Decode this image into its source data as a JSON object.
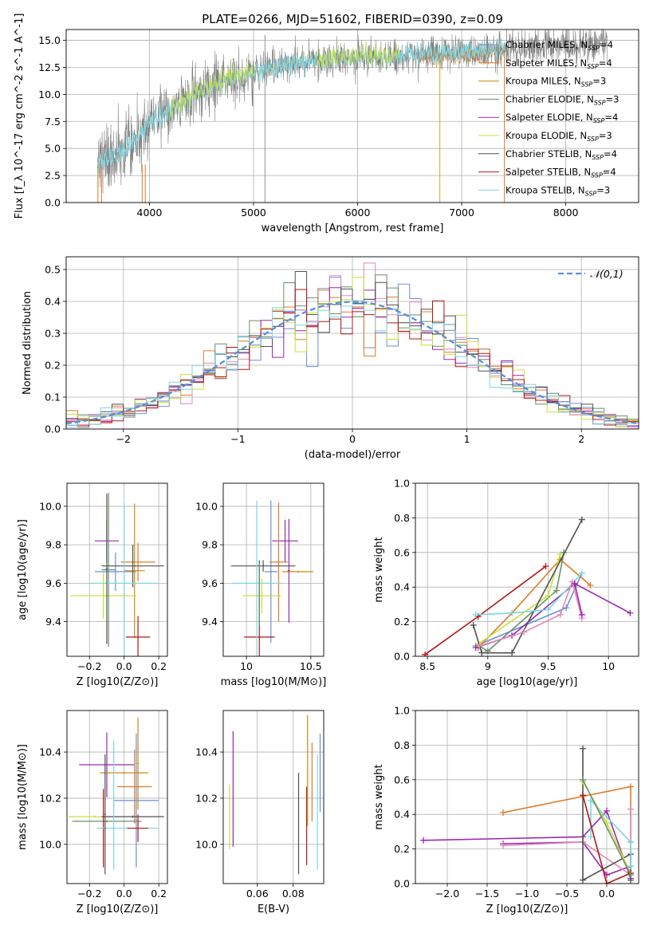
{
  "figure_title": "PLATE=0266, MJD=51602, FIBERID=0390, z=0.09",
  "models": [
    {
      "name": "Chabrier MILES, N_SSP=4",
      "color": "#6d8fd6",
      "n": 4
    },
    {
      "name": "Salpeter MILES, N_SSP=4",
      "color": "#e07a2a",
      "n": 4
    },
    {
      "name": "Kroupa MILES, N_SSP=3",
      "color": "#d08a10",
      "n": 3
    },
    {
      "name": "Chabrier ELODIE, N_SSP=3",
      "color": "#6a8e6a",
      "n": 3
    },
    {
      "name": "Salpeter ELODIE, N_SSP=4",
      "color": "#9a27b0",
      "n": 4
    },
    {
      "name": "Kroupa ELODIE, N_SSP=3",
      "color": "#c6e03a",
      "n": 3
    },
    {
      "name": "Chabrier STELIB, N_SSP=4",
      "color": "#505050",
      "n": 4
    },
    {
      "name": "Salpeter STELIB, N_SSP=4",
      "color": "#b01818",
      "n": 4
    },
    {
      "name": "Kroupa STELIB, N_SSP=3",
      "color": "#7fd6e0",
      "n": 3
    }
  ],
  "chart_data": [
    {
      "id": "spectrum",
      "type": "line",
      "xlabel": "wavelength [Angstrom, rest frame]",
      "ylabel": "Flux [f_λ 10^-17 erg cm^-2 s^-1 A^-1]",
      "xlim": [
        3200,
        8700
      ],
      "ylim": [
        0,
        16
      ],
      "xticks": [
        4000,
        5000,
        6000,
        7000,
        8000
      ],
      "yticks": [
        0.0,
        2.5,
        5.0,
        7.5,
        10.0,
        12.5,
        15.0
      ],
      "grid": true,
      "legend_position": "upper right",
      "data_color": "#808080",
      "model_color": "#7fd6e0",
      "continuum_x": [
        3500,
        3700,
        3900,
        4000,
        4200,
        4400,
        4600,
        4800,
        5000,
        5200,
        5400,
        5600,
        5800,
        6000,
        6200,
        6400,
        6600,
        6800,
        7000,
        7200,
        7400
      ],
      "continuum_y": [
        3.5,
        4.5,
        6.0,
        7.5,
        8.5,
        9.8,
        10.8,
        11.5,
        12.0,
        12.5,
        12.9,
        13.1,
        13.3,
        13.4,
        13.5,
        13.6,
        13.7,
        13.8,
        13.9,
        14.0,
        14.1
      ],
      "data_end_x": 8400,
      "model_end_x": 7420,
      "spikes_x": [
        5110,
        6790,
        7410
      ]
    },
    {
      "id": "residuals",
      "type": "histogram",
      "xlabel": "(data-model)/error",
      "ylabel": "Normed distribution",
      "xlim": [
        -2.5,
        2.5
      ],
      "ylim": [
        0,
        0.54
      ],
      "xticks": [
        -2,
        -1,
        0,
        1,
        2
      ],
      "xtick_labels": [
        "−2",
        "−1",
        "0",
        "1",
        "2"
      ],
      "yticks": [
        0.0,
        0.1,
        0.2,
        0.3,
        0.4,
        0.5
      ],
      "bin_width": 0.1,
      "legend_label": "N(0,1)",
      "legend_position": "upper right",
      "gaussian": {
        "mean": 0,
        "sigma": 1,
        "color": "#5b8fd6"
      },
      "grid": true
    },
    {
      "id": "age-vs-Z",
      "type": "errorbar",
      "xlabel": "Z [log10(Z/Z⊙)]",
      "ylabel": "age  [log10(age/yr)]",
      "xlim": [
        -0.33,
        0.25
      ],
      "ylim": [
        9.22,
        10.12
      ],
      "xticks": [
        -0.2,
        0.0,
        0.2
      ],
      "xtick_labels": [
        "−0.2",
        "0.0",
        "0.2"
      ],
      "yticks": [
        9.4,
        9.6,
        9.8,
        10.0
      ],
      "points": [
        {
          "x": -0.1,
          "y": 9.82,
          "xerr": 0.07,
          "yerr": 0.11,
          "model": 4
        },
        {
          "x": -0.05,
          "y": 9.66,
          "xerr": 0.12,
          "yerr": 0.1,
          "model": 0
        },
        {
          "x": 0.08,
          "y": 9.71,
          "xerr": 0.1,
          "yerr": 0.1,
          "model": 1
        },
        {
          "x": 0.06,
          "y": 9.665,
          "xerr": 0.06,
          "yerr": 0.35,
          "model": 2
        },
        {
          "x": -0.12,
          "y": 9.535,
          "xerr": 0.19,
          "yerr": 0.12,
          "model": 5
        },
        {
          "x": 0.05,
          "y": 9.69,
          "xerr": 0.18,
          "yerr": 0.11,
          "model": 6
        },
        {
          "x": -0.09,
          "y": 9.67,
          "xerr": 0.04,
          "yerr": 0.4,
          "model": 3
        },
        {
          "x": 0.08,
          "y": 9.32,
          "xerr": 0.07,
          "yerr": 0.11,
          "model": 7
        },
        {
          "x": 0.0,
          "y": 9.6,
          "xerr": 0.19,
          "yerr": 0.42,
          "model": 8
        },
        {
          "x": -0.1,
          "y": 9.675,
          "xerr": 0.005,
          "yerr": 0.39,
          "model": 6
        }
      ]
    },
    {
      "id": "age-vs-mass",
      "type": "errorbar",
      "xlabel": "mass [log10(M/M⊙)]",
      "ylabel": "",
      "xlim": [
        9.82,
        10.6
      ],
      "ylim": [
        9.22,
        10.12
      ],
      "xticks": [
        10.0,
        10.5
      ],
      "yticks": [
        9.4,
        9.6,
        9.8,
        10.0
      ],
      "points": [
        {
          "x": 10.3,
          "y": 9.82,
          "xerr": 0.1,
          "yerr": 0.11,
          "model": 4
        },
        {
          "x": 10.19,
          "y": 9.66,
          "xerr": 0.05,
          "yerr": 0.37,
          "model": 0
        },
        {
          "x": 10.25,
          "y": 9.71,
          "xerr": 0.07,
          "yerr": 0.31,
          "model": 1
        },
        {
          "x": 10.33,
          "y": 9.665,
          "xerr": 0.01,
          "yerr": 0.27,
          "model": 4
        },
        {
          "x": 10.4,
          "y": 9.66,
          "xerr": 0.12,
          "yerr": 0.005,
          "model": 2
        },
        {
          "x": 10.12,
          "y": 9.535,
          "xerr": 0.15,
          "yerr": 0.09,
          "model": 5
        },
        {
          "x": 10.13,
          "y": 9.69,
          "xerr": 0.25,
          "yerr": 0.03,
          "model": 6
        },
        {
          "x": 10.1,
          "y": 9.32,
          "xerr": 0.12,
          "yerr": 0.4,
          "model": 7
        },
        {
          "x": 10.08,
          "y": 9.6,
          "xerr": 0.19,
          "yerr": 0.43,
          "model": 8
        },
        {
          "x": 10.1,
          "y": 9.55,
          "xerr": 0.005,
          "yerr": 0.17,
          "model": 3
        }
      ]
    },
    {
      "id": "massweight-vs-age",
      "type": "line",
      "xlabel": "age  [log10(age/yr)]",
      "ylabel": "mass weight",
      "xlim": [
        8.4,
        10.25
      ],
      "ylim": [
        0,
        1
      ],
      "xticks": [
        8.5,
        9.0,
        9.5,
        10.0
      ],
      "yticks": [
        0.0,
        0.2,
        0.4,
        0.6,
        0.8,
        1.0
      ],
      "series": [
        {
          "model": 0,
          "x": [
            8.9,
            9.65,
            9.78
          ],
          "y": [
            0.06,
            0.28,
            0.48
          ]
        },
        {
          "model": 1,
          "x": [
            8.92,
            9.2,
            9.6,
            9.85
          ],
          "y": [
            0.05,
            0.25,
            0.56,
            0.41
          ]
        },
        {
          "model": 3,
          "x": [
            8.93,
            9.0,
            9.57,
            9.63
          ],
          "y": [
            0.06,
            0.03,
            0.38,
            0.6
          ]
        },
        {
          "model": 4,
          "x": [
            8.9,
            9.2,
            9.72,
            10.18
          ],
          "y": [
            0.05,
            0.12,
            0.42,
            0.25
          ]
        },
        {
          "model": 5,
          "x": [
            8.92,
            9.5,
            9.6
          ],
          "y": [
            0.07,
            0.35,
            0.59
          ]
        },
        {
          "model": 6,
          "x": [
            8.88,
            8.95,
            9.2,
            9.78
          ],
          "y": [
            0.18,
            0.02,
            0.02,
            0.79
          ]
        },
        {
          "model": 7,
          "x": [
            8.48,
            8.92,
            9.48
          ],
          "y": [
            0.01,
            0.23,
            0.52
          ]
        },
        {
          "model": 8,
          "x": [
            8.9,
            9.2,
            9.5,
            9.78
          ],
          "y": [
            0.24,
            0.25,
            0.27,
            0.48
          ]
        },
        {
          "model": 2,
          "x": [
            8.93,
            9.3,
            9.6,
            9.7,
            9.78
          ],
          "y": [
            0.06,
            0.14,
            0.24,
            0.43,
            0.22
          ],
          "color": "#e08ab8"
        },
        {
          "model": 4,
          "x": [
            9.72,
            9.78
          ],
          "y": [
            0.42,
            0.24
          ]
        }
      ]
    },
    {
      "id": "mass-vs-Z",
      "type": "errorbar",
      "xlabel": "Z [log10(Z/Z⊙)]",
      "ylabel": "mass [log10(M/M⊙)]",
      "xlim": [
        -0.33,
        0.25
      ],
      "ylim": [
        9.83,
        10.58
      ],
      "xticks": [
        -0.2,
        0.0,
        0.2
      ],
      "xtick_labels": [
        "−0.2",
        "0.0",
        "0.2"
      ],
      "yticks": [
        10.0,
        10.2,
        10.4
      ],
      "points": [
        {
          "x": -0.1,
          "y": 10.345,
          "xerr": 0.16,
          "yerr": 0.14,
          "model": 4
        },
        {
          "x": 0.0,
          "y": 10.31,
          "xerr": 0.14,
          "yerr": 0.005,
          "model": 2
        },
        {
          "x": 0.06,
          "y": 10.25,
          "xerr": 0.1,
          "yerr": 0.16,
          "model": 1
        },
        {
          "x": 0.07,
          "y": 10.19,
          "xerr": 0.13,
          "yerr": 0.29,
          "model": 0
        },
        {
          "x": -0.17,
          "y": 10.12,
          "xerr": 0.15,
          "yerr": 0.005,
          "model": 5
        },
        {
          "x": 0.05,
          "y": 10.12,
          "xerr": 0.18,
          "yerr": 0.005,
          "model": 6
        },
        {
          "x": -0.1,
          "y": 10.1,
          "xerr": 0.2,
          "yerr": 0.005,
          "model": 3
        },
        {
          "x": -0.12,
          "y": 10.07,
          "xerr": 0.02,
          "yerr": 0.17,
          "model": 7
        },
        {
          "x": 0.02,
          "y": 10.07,
          "xerr": 0.18,
          "yerr": 0.005,
          "model": 8
        },
        {
          "x": 0.08,
          "y": 10.07,
          "xerr": 0.06,
          "yerr": 0.06,
          "model": 7
        },
        {
          "x": -0.06,
          "y": 10.17,
          "xerr": 0.005,
          "yerr": 0.28,
          "model": 8
        },
        {
          "x": -0.11,
          "y": 10.13,
          "xerr": 0.005,
          "yerr": 0.26,
          "model": 6
        },
        {
          "x": 0.08,
          "y": 10.35,
          "xerr": 0.005,
          "yerr": 0.2,
          "model": 2
        }
      ]
    },
    {
      "id": "mass-vs-ebv",
      "type": "errorbar",
      "xlabel": "E(B-V)",
      "ylabel": "",
      "xlim": [
        0.041,
        0.097
      ],
      "ylim": [
        9.83,
        10.58
      ],
      "xticks": [
        0.06,
        0.08
      ],
      "yticks": [
        10.0,
        10.2,
        10.4
      ],
      "points": [
        {
          "x": 0.0465,
          "y": 10.24,
          "xerr": 0,
          "yerr": 0.25,
          "model": 4
        },
        {
          "x": 0.0445,
          "y": 10.12,
          "xerr": 0,
          "yerr": 0.14,
          "model": 5
        },
        {
          "x": 0.083,
          "y": 10.09,
          "xerr": 0,
          "yerr": 0.22,
          "model": 6
        },
        {
          "x": 0.0875,
          "y": 10.08,
          "xerr": 0,
          "yerr": 0.17,
          "model": 7
        },
        {
          "x": 0.088,
          "y": 10.32,
          "xerr": 0,
          "yerr": 0.24,
          "model": 2
        },
        {
          "x": 0.0905,
          "y": 10.27,
          "xerr": 0,
          "yerr": 0.17,
          "model": 1
        },
        {
          "x": 0.0935,
          "y": 10.14,
          "xerr": 0,
          "yerr": 0.25,
          "model": 8
        },
        {
          "x": 0.095,
          "y": 10.31,
          "xerr": 0,
          "yerr": 0.17,
          "model": 0
        }
      ]
    },
    {
      "id": "massweight-vs-Z",
      "type": "line",
      "xlabel": "Z [log10(Z/Z⊙)]",
      "ylabel": "mass weight",
      "xlim": [
        -2.4,
        0.4
      ],
      "ylim": [
        0,
        1
      ],
      "xticks": [
        -2.0,
        -1.5,
        -1.0,
        -0.5,
        0.0
      ],
      "xtick_labels": [
        "−2.0",
        "−1.5",
        "−1.0",
        "−0.5",
        "0.0"
      ],
      "yticks": [
        0.0,
        0.2,
        0.4,
        0.6,
        0.8,
        1.0
      ],
      "series": [
        {
          "model": 1,
          "x": [
            -1.3,
            0.3,
            0.3
          ],
          "y": [
            0.41,
            0.56,
            0.24
          ]
        },
        {
          "model": 4,
          "x": [
            -2.3,
            -0.3,
            0.0,
            0.3
          ],
          "y": [
            0.25,
            0.27,
            0.42,
            0.03
          ]
        },
        {
          "model": 4,
          "x": [
            -1.3,
            -0.3,
            0.0,
            0.3
          ],
          "y": [
            0.23,
            0.24,
            0.05,
            0.1
          ]
        },
        {
          "model": 2,
          "x": [
            -1.3,
            -0.3,
            0.3,
            0.3
          ],
          "y": [
            0.22,
            0.24,
            0.05,
            0.43
          ],
          "color": "#e08ab8"
        },
        {
          "model": 6,
          "x": [
            -0.3,
            -0.3,
            0.3,
            0.3
          ],
          "y": [
            0.78,
            0.02,
            0.17,
            0.02
          ]
        },
        {
          "model": 5,
          "x": [
            -0.3,
            0.0,
            0.3
          ],
          "y": [
            0.59,
            0.35,
            0.06
          ]
        },
        {
          "model": 8,
          "x": [
            -0.2,
            -0.2,
            0.3,
            0.3
          ],
          "y": [
            0.27,
            0.48,
            0.24,
            0.1
          ]
        },
        {
          "model": 7,
          "x": [
            -0.3,
            0.0,
            0.3
          ],
          "y": [
            0.51,
            0.0,
            0.06
          ]
        },
        {
          "model": 3,
          "x": [
            -0.3,
            0.3
          ],
          "y": [
            0.6,
            0.05
          ]
        }
      ]
    }
  ]
}
